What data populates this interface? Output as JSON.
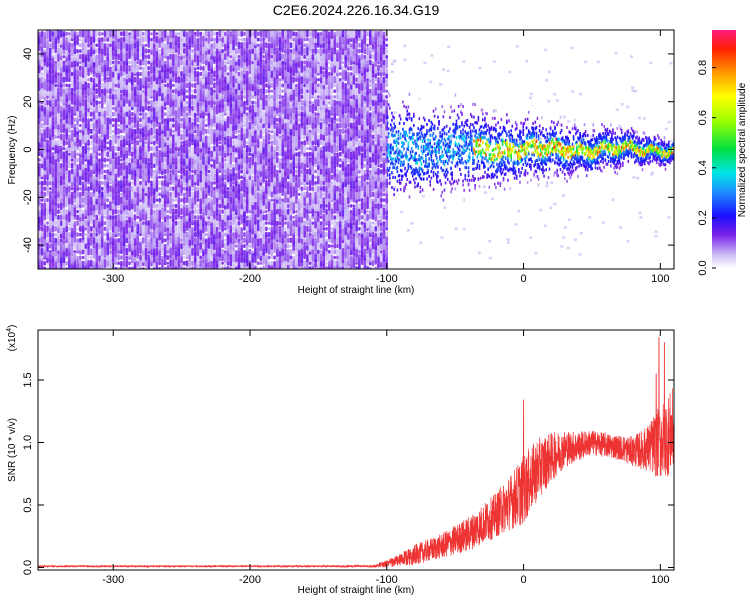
{
  "title": "C2E6.2024.226.16.34.G19",
  "chart_data": [
    {
      "type": "heatmap",
      "xlabel": "Height of straight line (km)",
      "ylabel": "Frequency (Hz)",
      "xlim": [
        -355,
        110
      ],
      "ylim": [
        -50,
        50
      ],
      "x_ticks": [
        -300,
        -200,
        -100,
        0,
        100
      ],
      "y_ticks": [
        -40,
        -20,
        0,
        20,
        40
      ],
      "x_tick_labels": [
        "-300",
        "-200",
        "-100",
        "0",
        "100"
      ],
      "y_tick_labels": [
        "-40",
        "-20",
        "0",
        "20",
        "40"
      ],
      "noise_region_x": [
        -355,
        -100
      ],
      "signal_band_center_hz": 0,
      "colorbar": {
        "label": "Normalized spectral amplitude",
        "range": [
          0,
          0.95
        ],
        "ticks": [
          0.0,
          0.2,
          0.4,
          0.6,
          0.8
        ],
        "tick_labels": [
          "0.0",
          "0.2",
          "0.4",
          "0.6",
          "0.8"
        ]
      }
    },
    {
      "type": "line",
      "xlabel": "Height of straight line (km)",
      "ylabel": "SNR (10 * v/v)",
      "y_multiplier": "(x10",
      "y_multiplier_exp": "4",
      "y_multiplier_close": ")",
      "xlim": [
        -355,
        110
      ],
      "ylim": [
        -0.02,
        1.9
      ],
      "x_ticks": [
        -300,
        -200,
        -100,
        0,
        100
      ],
      "y_ticks": [
        0.0,
        0.5,
        1.0,
        1.5
      ],
      "x_tick_labels": [
        "-300",
        "-200",
        "-100",
        "0",
        "100"
      ],
      "y_tick_labels": [
        "0.0",
        "0.5",
        "1.0",
        "1.5"
      ],
      "color": "#ee3333",
      "envelope": {
        "x": [
          -355,
          -300,
          -200,
          -110,
          -100,
          -90,
          -80,
          -60,
          -40,
          -20,
          -10,
          0,
          10,
          20,
          30,
          40,
          50,
          60,
          70,
          80,
          90,
          100,
          110
        ],
        "mean": [
          0.01,
          0.01,
          0.01,
          0.01,
          0.03,
          0.06,
          0.1,
          0.17,
          0.27,
          0.42,
          0.52,
          0.62,
          0.78,
          0.88,
          0.95,
          0.97,
          1.0,
          0.98,
          0.96,
          0.93,
          0.95,
          1.0,
          1.1
        ],
        "amp": [
          0.005,
          0.005,
          0.005,
          0.008,
          0.03,
          0.05,
          0.08,
          0.1,
          0.14,
          0.18,
          0.22,
          0.28,
          0.25,
          0.2,
          0.15,
          0.12,
          0.1,
          0.1,
          0.1,
          0.12,
          0.18,
          0.3,
          0.35
        ]
      },
      "peaks": [
        {
          "x": 0,
          "y": 1.34
        },
        {
          "x": 99,
          "y": 1.84
        },
        {
          "x": 103,
          "y": 1.8
        },
        {
          "x": 97,
          "y": 1.55
        }
      ]
    }
  ]
}
